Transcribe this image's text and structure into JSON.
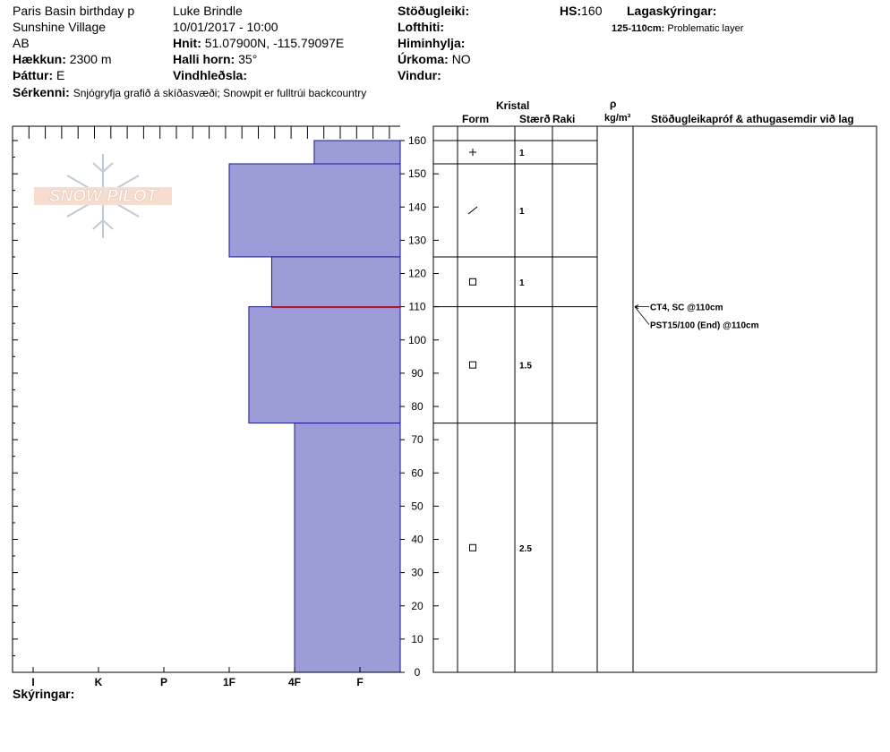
{
  "header": {
    "location_name": "Paris Basin birthday p",
    "area": "Sunshine Village",
    "region": "AB",
    "elevation_label": "Hækkun:",
    "elevation_value": "2300 m",
    "aspect_label": "Þáttur:",
    "aspect_value": "E",
    "observer": "Luke Brindle",
    "datetime": "10/01/2017 - 10:00",
    "coords_label": "Hnit:",
    "coords_value": "51.07900N, -115.79097E",
    "slope_label": "Halli horn:",
    "slope_value": "35°",
    "wind_loading_label": "Vindhleðsla:",
    "stability_label": "Stöðugleiki:",
    "air_temp_label": "Lofthiti:",
    "sky_label": "Himinhylja:",
    "precip_label": "Úrkoma:",
    "precip_value": "NO",
    "wind_label": "Vindur:",
    "hs_label": "HS:",
    "hs_value": "160",
    "layer_notes_label": "Lagaskýringar:",
    "layer_note_range": "125-110cm:",
    "layer_note_text": "Problematic layer",
    "features_label": "Sérkenni:",
    "features_value": "Snjógryfja grafið á skíðasvæði;  Snowpit er fulltrúi backcountry"
  },
  "logo_text": "SNOW PILOT",
  "columns": {
    "crystal_label": "Kristal",
    "form_label": "Form",
    "size_label": "Stærð",
    "moisture_label": "Raki",
    "density_symbol": "ρ",
    "density_unit": "kg/m³",
    "tests_label": "Stöðugleikapróf & athugasemdir við lag"
  },
  "footer": {
    "notes_label": "Skýringar:"
  },
  "colors": {
    "layer_fill": "#9c9cd8",
    "layer_stroke": "#1a1a8c",
    "problem_line": "#c0102a"
  },
  "chart_data": {
    "type": "bar",
    "orientation": "horizontal",
    "y_range": [
      0,
      160
    ],
    "y_ticks": [
      0,
      10,
      20,
      30,
      40,
      50,
      60,
      70,
      80,
      90,
      100,
      110,
      120,
      130,
      140,
      150,
      160
    ],
    "hardness_scale": [
      "I",
      "K",
      "P",
      "1F",
      "4F",
      "F"
    ],
    "layers": [
      {
        "top": 160,
        "bottom": 153,
        "hardness": 4.3
      },
      {
        "top": 153,
        "bottom": 125,
        "hardness": 3.0
      },
      {
        "top": 125,
        "bottom": 110,
        "hardness": 3.65
      },
      {
        "top": 110,
        "bottom": 75,
        "hardness": 3.3
      },
      {
        "top": 75,
        "bottom": 0,
        "hardness": 4.0
      }
    ],
    "problem_layer": [
      110,
      125
    ],
    "crystal_rows": [
      {
        "top": 160,
        "bottom": 153,
        "form": "plus-icon",
        "size": "1"
      },
      {
        "top": 153,
        "bottom": 125,
        "form": "slash-icon",
        "size": "1"
      },
      {
        "top": 125,
        "bottom": 110,
        "form": "square-icon",
        "size": "1"
      },
      {
        "top": 110,
        "bottom": 75,
        "form": "square-icon",
        "size": "1.5"
      },
      {
        "top": 75,
        "bottom": 0,
        "form": "square-icon",
        "size": "2.5"
      }
    ],
    "tests": [
      {
        "height": 110,
        "text": "CT4, SC @110cm"
      },
      {
        "height": 110,
        "text": "PST15/100 (End) @110cm"
      }
    ]
  }
}
